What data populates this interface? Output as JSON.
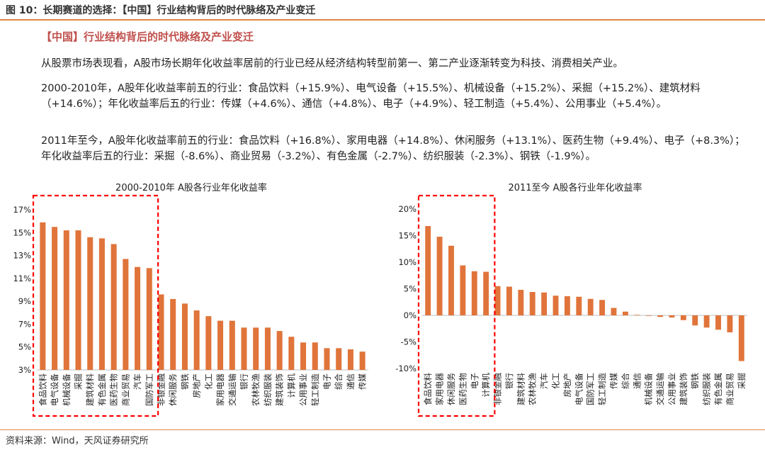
{
  "figure_title": "图 10：长期赛道的选择：【中国】行业结构背后的时代脉络及产业变迁",
  "section_title": "【中国】行业结构背后的时代脉络及产业变迁",
  "paragraphs": {
    "p1": "从股票市场表现看，A股市场长期年化收益率居前的行业已经从经济结构转型前第一、第二产业逐渐转变为科技、消费相关产业。",
    "p2": "2000-2010年，A股年化收益率前五的行业：食品饮料（+15.9%）、电气设备（+15.5%）、机械设备（+15.2%）、采掘（+15.2%）、建筑材料（+14.6%）；年化收益率后五的行业：传媒（+4.6%）、通信（+4.8%）、电子（+4.9%）、轻工制造（+5.4%）、公用事业（+5.4%）。",
    "p3": "2011年至今，A股年化收益率前五的行业：食品饮料（+16.8%）、家用电器（+14.8%）、休闲服务（+13.1%）、医药生物（+9.4%）、电子（+8.3%）；年化收益率后五的行业：采掘（-8.6%）、商业贸易（-3.2%）、有色金属（-2.7%）、纺织服装（-2.3%）、钢铁（-1.9%）。"
  },
  "source": "资料来源：Wind，天风证券研究所",
  "colors": {
    "bar": "#e0743a",
    "accent": "#c0504d",
    "rule": "#e0874a",
    "highlight_box": "#ff0000",
    "axis": "#bfbfbf"
  },
  "chart_data": [
    {
      "type": "bar",
      "title": "2000-2010年 A股各行业年化收益率",
      "xlabel": "",
      "ylabel": "",
      "ylim": [
        3,
        17
      ],
      "yticks": [
        3,
        5,
        7,
        9,
        11,
        13,
        15,
        17
      ],
      "tick_labels": [
        "3%",
        "5%",
        "7%",
        "9%",
        "11%",
        "13%",
        "15%",
        "17%"
      ],
      "grid": false,
      "highlight_count": 10,
      "categories": [
        "食品饮料",
        "电气设备",
        "机械设备",
        "采掘",
        "建筑材料",
        "有色金属",
        "医药生物",
        "商业贸易",
        "汽车",
        "国防军工",
        "非银金融",
        "休闲服务",
        "钢铁",
        "房地产",
        "化工",
        "家用电器",
        "交通运输",
        "银行",
        "农林牧渔",
        "纺织服装",
        "建筑装饰",
        "计算机",
        "公用事业",
        "轻工制造",
        "电子",
        "综合",
        "通信",
        "传媒"
      ],
      "values": [
        15.9,
        15.5,
        15.2,
        15.2,
        14.6,
        14.5,
        14.0,
        12.7,
        12.0,
        11.9,
        9.6,
        9.2,
        8.8,
        8.2,
        7.7,
        7.3,
        7.3,
        6.7,
        6.7,
        6.7,
        6.4,
        5.9,
        5.4,
        5.4,
        4.9,
        4.9,
        4.8,
        4.6
      ]
    },
    {
      "type": "bar",
      "title": "2011至今 A股各行业年化收益率",
      "xlabel": "",
      "ylabel": "",
      "ylim": [
        -10,
        20
      ],
      "yticks": [
        -10,
        -5,
        0,
        5,
        10,
        15,
        20
      ],
      "tick_labels": [
        "-10%",
        "-5%",
        "0%",
        "5%",
        "10%",
        "15%",
        "20%"
      ],
      "grid": false,
      "highlight_count": 6,
      "categories": [
        "食品饮料",
        "家用电器",
        "休闲服务",
        "医药生物",
        "电子",
        "计算机",
        "非银金融",
        "银行",
        "建筑材料",
        "农林牧渔",
        "汽车",
        "化工",
        "房地产",
        "电气设备",
        "国防军工",
        "轻工制造",
        "传媒",
        "综合",
        "通信",
        "机械设备",
        "交通运输",
        "公用事业",
        "建筑装饰",
        "钢铁",
        "纺织服装",
        "有色金属",
        "商业贸易",
        "采掘"
      ],
      "values": [
        16.8,
        14.8,
        13.1,
        9.4,
        8.3,
        8.2,
        5.5,
        5.4,
        4.8,
        4.4,
        4.3,
        3.7,
        3.6,
        3.5,
        3.1,
        2.9,
        1.4,
        0.7,
        0.1,
        -0.1,
        -0.3,
        -0.4,
        -0.9,
        -1.9,
        -2.3,
        -2.7,
        -3.2,
        -8.6
      ]
    }
  ]
}
